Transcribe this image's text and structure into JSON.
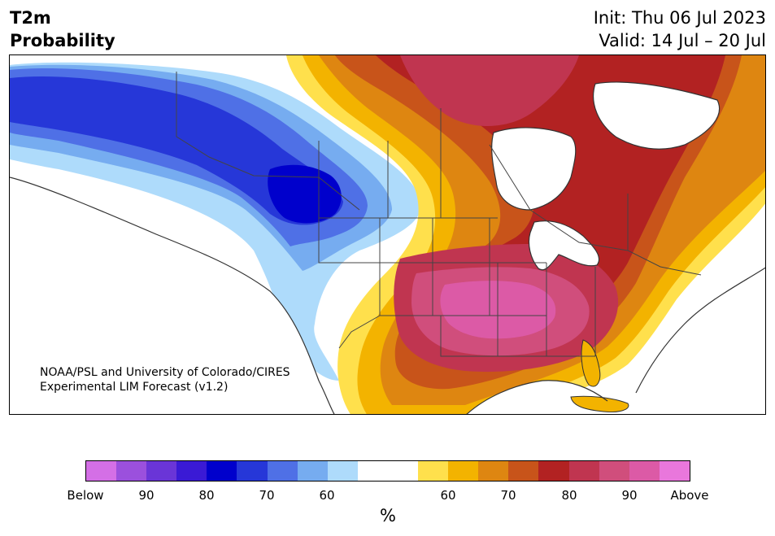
{
  "title": {
    "variable": "T2m",
    "measure": "Probability",
    "init": "Init: Thu 06 Jul 2023",
    "valid": "Valid: 14 Jul – 20 Jul"
  },
  "credit": {
    "line1": "NOAA/PSL and University of Colorado/CIRES",
    "line2": "Experimental LIM Forecast (v1.2)"
  },
  "colorbar": {
    "unit": "%",
    "colors": [
      "#d46fe6",
      "#9b50dd",
      "#6a35d7",
      "#3a1ad5",
      "#0000cc",
      "#2637d8",
      "#4f70e6",
      "#76acf0",
      "#aedbfb",
      "#ffffff",
      "#ffffff",
      "#ffe04c",
      "#f3b300",
      "#de8611",
      "#c8541a",
      "#b22222",
      "#c03550",
      "#d04e7c",
      "#dc5aa6",
      "#e977dc"
    ],
    "tick_labels": [
      "Below",
      "90",
      "80",
      "70",
      "60",
      "60",
      "70",
      "80",
      "90",
      "Above"
    ]
  },
  "map": {
    "region": "North America",
    "below_normal_area": "Alaska, western Canada, Pacific Northwest",
    "above_normal_area": "Central and eastern United States, eastern Canada"
  }
}
